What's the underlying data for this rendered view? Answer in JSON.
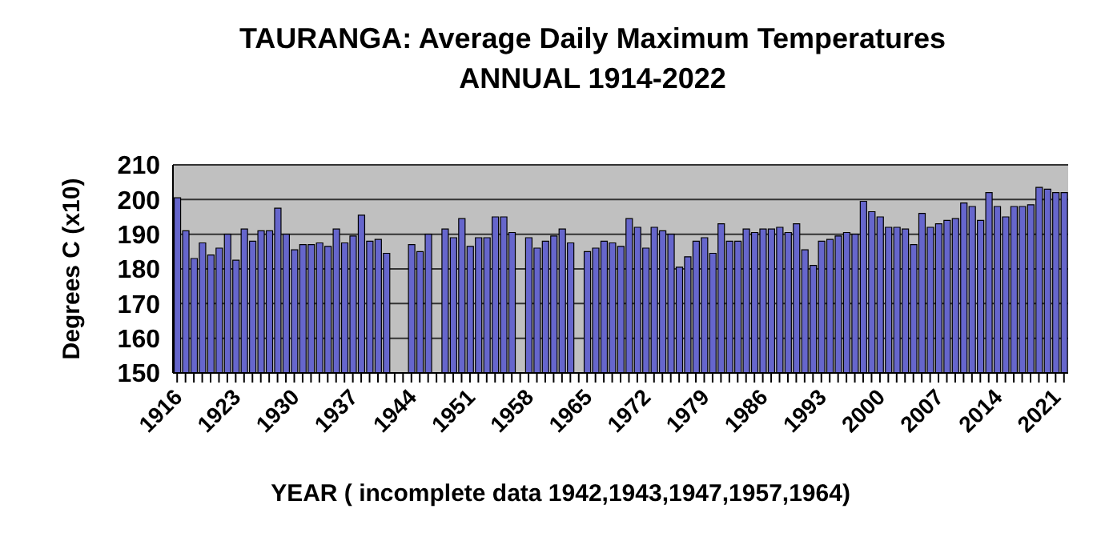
{
  "chart_data": {
    "type": "bar",
    "title": "TAURANGA: Average Daily Maximum Temperatures\nANNUAL 1914-2022",
    "xlabel": "YEAR ( incomplete data 1942,1943,1947,1957,1964)",
    "ylabel": "Degrees  C (x10)",
    "categories": [
      "1916",
      null,
      null,
      null,
      null,
      null,
      null,
      "1923",
      null,
      null,
      null,
      null,
      null,
      null,
      "1930",
      null,
      null,
      null,
      null,
      null,
      null,
      "1937",
      null,
      null,
      null,
      null,
      null,
      null,
      "1944",
      null,
      null,
      null,
      null,
      null,
      null,
      "1951",
      null,
      null,
      null,
      null,
      null,
      null,
      "1958",
      null,
      null,
      null,
      null,
      null,
      null,
      "1965",
      null,
      null,
      null,
      null,
      null,
      null,
      "1972",
      null,
      null,
      null,
      null,
      null,
      null,
      "1979",
      null,
      null,
      null,
      null,
      null,
      null,
      "1986",
      null,
      null,
      null,
      null,
      null,
      null,
      "1993",
      null,
      null,
      null,
      null,
      null,
      null,
      "2000",
      null,
      null,
      null,
      null,
      null,
      null,
      "2007",
      null,
      null,
      null,
      null,
      null,
      null,
      "2014",
      null,
      null,
      null,
      null,
      null,
      null,
      "2021",
      null
    ],
    "values": [
      200.5,
      191,
      183,
      187.5,
      184,
      186,
      190,
      182.5,
      191.5,
      188,
      191,
      191,
      197.5,
      190,
      185.5,
      187,
      187,
      187.5,
      186.5,
      191.5,
      187.5,
      189.5,
      195.5,
      188,
      188.5,
      184.5,
      null,
      null,
      187,
      185,
      190,
      null,
      191.5,
      189,
      194.5,
      186.5,
      189,
      189,
      195,
      195,
      190.5,
      null,
      189,
      186,
      188,
      189.5,
      191.5,
      187.5,
      null,
      185,
      186,
      188,
      187.5,
      186.5,
      194.5,
      192,
      186,
      192,
      191,
      190,
      180.5,
      183.5,
      188,
      189,
      184.5,
      193,
      188,
      188,
      191.5,
      190.5,
      191.5,
      191.5,
      192,
      190.5,
      193,
      185.5,
      181,
      188,
      188.5,
      189.5,
      190.5,
      190,
      199.5,
      196.5,
      195,
      192,
      192,
      191.5,
      187,
      196,
      192,
      193,
      194,
      194.5,
      199,
      198,
      194,
      202,
      198,
      195,
      198,
      198,
      198.5,
      203.5,
      203,
      202,
      202
    ],
    "color": "#6666cc",
    "ylim": [
      150,
      210
    ],
    "yticks": [
      150,
      160,
      170,
      180,
      190,
      200,
      210
    ],
    "grid": "y"
  }
}
